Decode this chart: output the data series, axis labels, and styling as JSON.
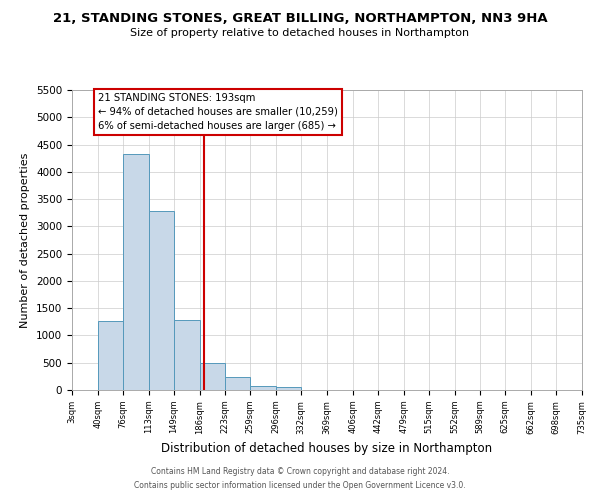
{
  "title": "21, STANDING STONES, GREAT BILLING, NORTHAMPTON, NN3 9HA",
  "subtitle": "Size of property relative to detached houses in Northampton",
  "xlabel": "Distribution of detached houses by size in Northampton",
  "ylabel": "Number of detached properties",
  "bar_color": "#c8d8e8",
  "bar_edge_color": "#5599bb",
  "background_color": "#ffffff",
  "grid_color": "#cccccc",
  "annotation_line_color": "#cc0000",
  "annotation_box_color": "#cc0000",
  "annotation_text": "21 STANDING STONES: 193sqm",
  "annotation_line1": "← 94% of detached houses are smaller (10,259)",
  "annotation_line2": "6% of semi-detached houses are larger (685) →",
  "property_value": 193,
  "ylim": [
    0,
    5500
  ],
  "yticks": [
    0,
    500,
    1000,
    1500,
    2000,
    2500,
    3000,
    3500,
    4000,
    4500,
    5000,
    5500
  ],
  "bins": [
    3,
    40,
    76,
    113,
    149,
    186,
    223,
    259,
    296,
    332,
    369,
    406,
    442,
    479,
    515,
    552,
    589,
    625,
    662,
    698,
    735
  ],
  "counts": [
    0,
    1270,
    4330,
    3290,
    1290,
    490,
    230,
    80,
    50,
    0,
    0,
    0,
    0,
    0,
    0,
    0,
    0,
    0,
    0,
    0
  ],
  "footer1": "Contains HM Land Registry data © Crown copyright and database right 2024.",
  "footer2": "Contains public sector information licensed under the Open Government Licence v3.0."
}
